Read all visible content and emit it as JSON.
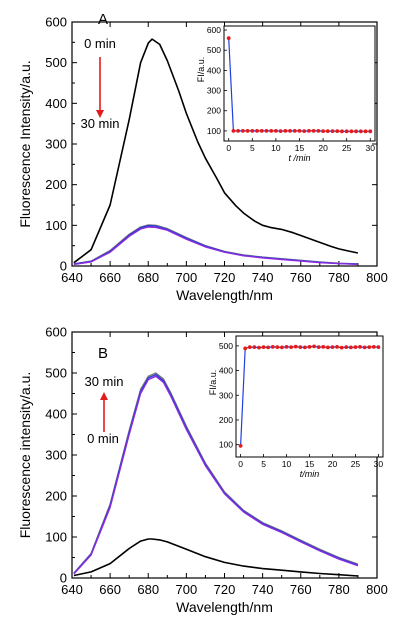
{
  "colors": {
    "axis": "#000000",
    "black_curve": "#000000",
    "purple_curve": "#8a2be2",
    "blue_curve": "#2b3bd6",
    "arrow": "#e41a1c",
    "inset_line": "#1f3fe0",
    "inset_marker": "#e41a1c"
  },
  "chart_data": [
    {
      "type": "line",
      "panel_label": "A",
      "xlabel": "Wavelength/nm",
      "ylabel": "Fluorescence Intensity/a.u.",
      "xlim": [
        640,
        800
      ],
      "ylim": [
        0,
        600
      ],
      "x_ticks": [
        640,
        660,
        680,
        700,
        720,
        740,
        760,
        780,
        800
      ],
      "y_ticks": [
        0,
        100,
        200,
        300,
        400,
        500,
        600
      ],
      "annotations": {
        "start": "0 min",
        "end": "30 min",
        "arrow_direction": "down"
      },
      "series": [
        {
          "color": "black",
          "x": [
            641,
            650,
            660,
            670,
            676,
            680,
            682,
            686,
            690,
            696,
            700,
            706,
            710,
            716,
            720,
            726,
            730,
            736,
            740,
            744,
            750,
            756,
            760,
            766,
            770,
            776,
            780,
            785,
            790
          ],
          "y": [
            8,
            40,
            150,
            360,
            500,
            548,
            558,
            545,
            505,
            430,
            375,
            305,
            265,
            215,
            180,
            148,
            130,
            110,
            100,
            95,
            90,
            82,
            75,
            65,
            58,
            48,
            42,
            37,
            32
          ]
        },
        {
          "color": "gray",
          "x": [
            641,
            650,
            660,
            670,
            676,
            680,
            684,
            690,
            700,
            710,
            720,
            730,
            740,
            750,
            760,
            770,
            780,
            790
          ],
          "y": [
            5,
            12,
            38,
            78,
            96,
            101,
            100,
            92,
            70,
            50,
            36,
            27,
            22,
            18,
            14,
            10,
            7,
            5
          ]
        },
        {
          "color": "blue",
          "x": [
            641,
            650,
            660,
            670,
            676,
            680,
            684,
            690,
            700,
            710,
            720,
            730,
            740,
            750,
            760,
            770,
            780,
            790
          ],
          "y": [
            5,
            11,
            36,
            76,
            94,
            99,
            98,
            90,
            68,
            49,
            35,
            26,
            21,
            17,
            13,
            9,
            6,
            5
          ]
        },
        {
          "color": "purple",
          "x": [
            641,
            650,
            660,
            670,
            676,
            680,
            684,
            690,
            700,
            710,
            720,
            730,
            740,
            750,
            760,
            770,
            780,
            790
          ],
          "y": [
            4,
            10,
            34,
            73,
            91,
            96,
            95,
            88,
            66,
            47,
            34,
            25,
            20,
            16,
            12,
            8,
            6,
            4
          ]
        }
      ],
      "inset": {
        "type": "line",
        "xlabel": "t /min",
        "ylabel": "FI/a.u.",
        "xlim": [
          -1,
          31
        ],
        "ylim": [
          50,
          620
        ],
        "x_ticks": [
          0,
          5,
          10,
          15,
          20,
          25,
          30
        ],
        "y_ticks": [
          100,
          200,
          300,
          400,
          500,
          600
        ],
        "x": [
          0,
          1,
          2,
          3,
          4,
          5,
          6,
          7,
          8,
          9,
          10,
          11,
          12,
          13,
          14,
          15,
          16,
          17,
          18,
          19,
          20,
          21,
          22,
          23,
          24,
          25,
          26,
          27,
          28,
          29,
          30
        ],
        "y": [
          560,
          100,
          100,
          100,
          100,
          100,
          100,
          100,
          100,
          100,
          100,
          99,
          100,
          100,
          100,
          100,
          99,
          100,
          100,
          100,
          99,
          99,
          99,
          99,
          98,
          98,
          98,
          98,
          98,
          98,
          98
        ]
      }
    },
    {
      "type": "line",
      "panel_label": "B",
      "xlabel": "Wavelength/nm",
      "ylabel": "Fluorescence intensity/a.u.",
      "xlim": [
        640,
        800
      ],
      "ylim": [
        0,
        600
      ],
      "x_ticks": [
        640,
        660,
        680,
        700,
        720,
        740,
        760,
        780,
        800
      ],
      "y_ticks": [
        0,
        100,
        200,
        300,
        400,
        500,
        600
      ],
      "annotations": {
        "start": "0 min",
        "end": "30 min",
        "arrow_direction": "up"
      },
      "series": [
        {
          "color": "black",
          "x": [
            641,
            650,
            660,
            670,
            676,
            680,
            682,
            686,
            690,
            700,
            710,
            720,
            730,
            740,
            750,
            760,
            770,
            780,
            790
          ],
          "y": [
            6,
            15,
            35,
            72,
            90,
            95,
            95,
            93,
            88,
            70,
            52,
            38,
            29,
            23,
            19,
            15,
            11,
            8,
            5
          ]
        },
        {
          "color": "gray",
          "x": [
            641,
            650,
            660,
            670,
            676,
            680,
            684,
            688,
            692,
            700,
            710,
            720,
            730,
            740,
            750,
            760,
            770,
            780,
            790
          ],
          "y": [
            12,
            60,
            180,
            360,
            460,
            492,
            500,
            485,
            450,
            370,
            280,
            210,
            165,
            135,
            115,
            92,
            70,
            50,
            34
          ]
        },
        {
          "color": "blue",
          "x": [
            641,
            650,
            660,
            670,
            676,
            680,
            684,
            688,
            692,
            700,
            710,
            720,
            730,
            740,
            750,
            760,
            770,
            780,
            790
          ],
          "y": [
            11,
            58,
            176,
            355,
            455,
            488,
            496,
            481,
            446,
            366,
            277,
            207,
            163,
            133,
            113,
            90,
            68,
            48,
            32
          ]
        },
        {
          "color": "purple",
          "x": [
            641,
            650,
            660,
            670,
            676,
            680,
            684,
            688,
            692,
            700,
            710,
            720,
            730,
            740,
            750,
            760,
            770,
            780,
            790
          ],
          "y": [
            10,
            56,
            172,
            350,
            450,
            484,
            492,
            477,
            442,
            362,
            274,
            205,
            161,
            131,
            111,
            88,
            66,
            46,
            30
          ]
        }
      ],
      "inset": {
        "type": "line",
        "xlabel": "t/min",
        "ylabel": "FI/a.u.",
        "xlim": [
          -1,
          31
        ],
        "ylim": [
          50,
          540
        ],
        "x_ticks": [
          0,
          5,
          10,
          15,
          20,
          25,
          30
        ],
        "y_ticks": [
          100,
          200,
          300,
          400,
          500
        ],
        "x": [
          0,
          1,
          2,
          3,
          4,
          5,
          6,
          7,
          8,
          9,
          10,
          11,
          12,
          13,
          14,
          15,
          16,
          17,
          18,
          19,
          20,
          21,
          22,
          23,
          24,
          25,
          26,
          27,
          28,
          29,
          30
        ],
        "y": [
          95,
          490,
          495,
          495,
          493,
          495,
          494,
          496,
          495,
          494,
          496,
          495,
          497,
          495,
          494,
          496,
          498,
          495,
          496,
          494,
          495,
          496,
          493,
          495,
          494,
          495,
          496,
          494,
          495,
          496,
          495
        ]
      }
    }
  ]
}
